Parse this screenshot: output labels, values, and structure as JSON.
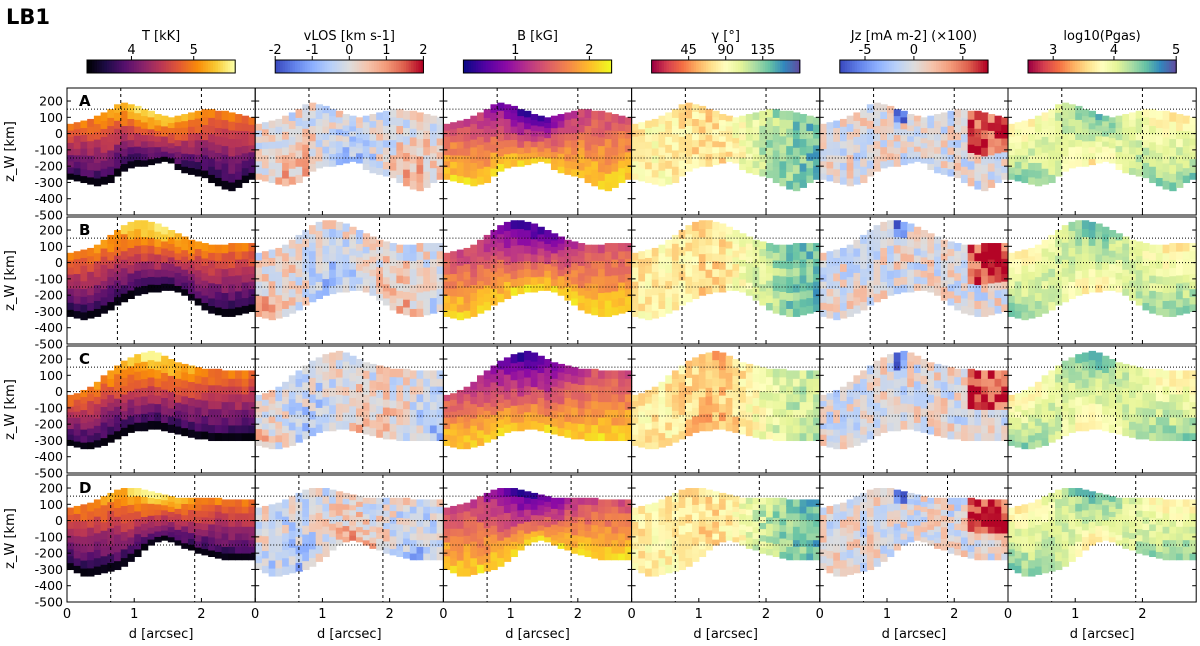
{
  "figure_title": "LB1",
  "chart_data": {
    "type": "heatmap",
    "x_label": "d [arcsec]",
    "y_label": "z_W [km]",
    "x_range": [
      0,
      2.8
    ],
    "x_ticks": [
      "0",
      "1",
      "2"
    ],
    "y_range": [
      -500,
      280
    ],
    "y_ticks": [
      "-500",
      "-400",
      "-300",
      "-200",
      "-100",
      "0",
      "100",
      "200"
    ],
    "reference_lines": {
      "horizontal_dotted_z": [
        -150,
        0,
        150
      ]
    },
    "rows": [
      {
        "label": "A",
        "vlines": [
          0.8,
          2.0
        ],
        "bottom": [
          -280,
          -290,
          -300,
          -310,
          -320,
          -310,
          -300,
          -260,
          -230,
          -210,
          -200,
          -200,
          -190,
          -180,
          -170,
          -180,
          -220,
          -240,
          -250,
          -260,
          -270,
          -300,
          -320,
          -340,
          -350,
          -330,
          -300,
          -280
        ],
        "top": [
          60,
          70,
          80,
          90,
          110,
          130,
          150,
          180,
          190,
          180,
          170,
          150,
          140,
          120,
          110,
          100,
          110,
          120,
          130,
          140,
          150,
          150,
          140,
          140,
          130,
          120,
          110,
          100
        ]
      },
      {
        "label": "B",
        "vlines": [
          0.75,
          1.85
        ],
        "bottom": [
          -330,
          -340,
          -350,
          -340,
          -330,
          -310,
          -290,
          -260,
          -240,
          -220,
          -200,
          -190,
          -180,
          -180,
          -170,
          -170,
          -180,
          -200,
          -230,
          -260,
          -290,
          -310,
          -320,
          -330,
          -330,
          -320,
          -310,
          -300
        ],
        "top": [
          60,
          70,
          80,
          90,
          110,
          140,
          170,
          200,
          230,
          250,
          260,
          260,
          250,
          240,
          220,
          200,
          180,
          160,
          140,
          130,
          120,
          110,
          110,
          110,
          120,
          120,
          120,
          120
        ]
      },
      {
        "label": "C",
        "vlines": [
          0.8,
          1.6
        ],
        "bottom": [
          -330,
          -340,
          -350,
          -350,
          -340,
          -330,
          -310,
          -290,
          -270,
          -250,
          -240,
          -240,
          -230,
          -230,
          -240,
          -250,
          -260,
          -270,
          -280,
          -290,
          -290,
          -300,
          -300,
          -300,
          -300,
          -300,
          -300,
          -300
        ],
        "top": [
          -20,
          -10,
          10,
          30,
          60,
          100,
          130,
          160,
          190,
          210,
          230,
          240,
          250,
          240,
          220,
          200,
          180,
          170,
          160,
          150,
          140,
          140,
          140,
          130,
          130,
          130,
          130,
          130
        ]
      },
      {
        "label": "D",
        "vlines": [
          0.65,
          1.9
        ],
        "bottom": [
          -300,
          -320,
          -340,
          -340,
          -330,
          -320,
          -310,
          -300,
          -280,
          -250,
          -220,
          -180,
          -150,
          -130,
          -120,
          -130,
          -150,
          -170,
          -180,
          -200,
          -210,
          -220,
          -230,
          -240,
          -240,
          -240,
          -240,
          -240
        ],
        "top": [
          80,
          90,
          100,
          110,
          130,
          150,
          170,
          190,
          200,
          200,
          200,
          190,
          180,
          170,
          160,
          150,
          140,
          140,
          140,
          140,
          140,
          140,
          140,
          130,
          130,
          130,
          130,
          130
        ]
      }
    ],
    "columns": [
      {
        "label": "T [kK]",
        "colormap": "inferno",
        "colorbar_ticks": [
          "4",
          "5"
        ],
        "tick_positions": [
          0.3,
          0.72
        ]
      },
      {
        "label": "vLOS [km s-1]",
        "colormap": "coolwarm",
        "colorbar_ticks": [
          "-2",
          "-1",
          "0",
          "1",
          "2"
        ],
        "tick_positions": [
          0.0,
          0.25,
          0.5,
          0.75,
          1.0
        ]
      },
      {
        "label": "B [kG]",
        "colormap": "plasma",
        "colorbar_ticks": [
          "1",
          "2"
        ],
        "tick_positions": [
          0.35,
          0.85
        ]
      },
      {
        "label": "γ [°]",
        "colormap": "Spectral",
        "colorbar_ticks": [
          "45",
          "90",
          "135"
        ],
        "tick_positions": [
          0.25,
          0.5,
          0.75
        ]
      },
      {
        "label": "Jz [mA m-2] (×100)",
        "colormap": "coolwarm",
        "colorbar_ticks": [
          "-5",
          "0",
          "5"
        ],
        "tick_positions": [
          0.17,
          0.5,
          0.83
        ]
      },
      {
        "label": "log10(Pgas)",
        "colormap": "Spectral",
        "colorbar_ticks": [
          "3",
          "4",
          "5"
        ],
        "tick_positions": [
          0.17,
          0.58,
          1.0
        ]
      }
    ]
  }
}
